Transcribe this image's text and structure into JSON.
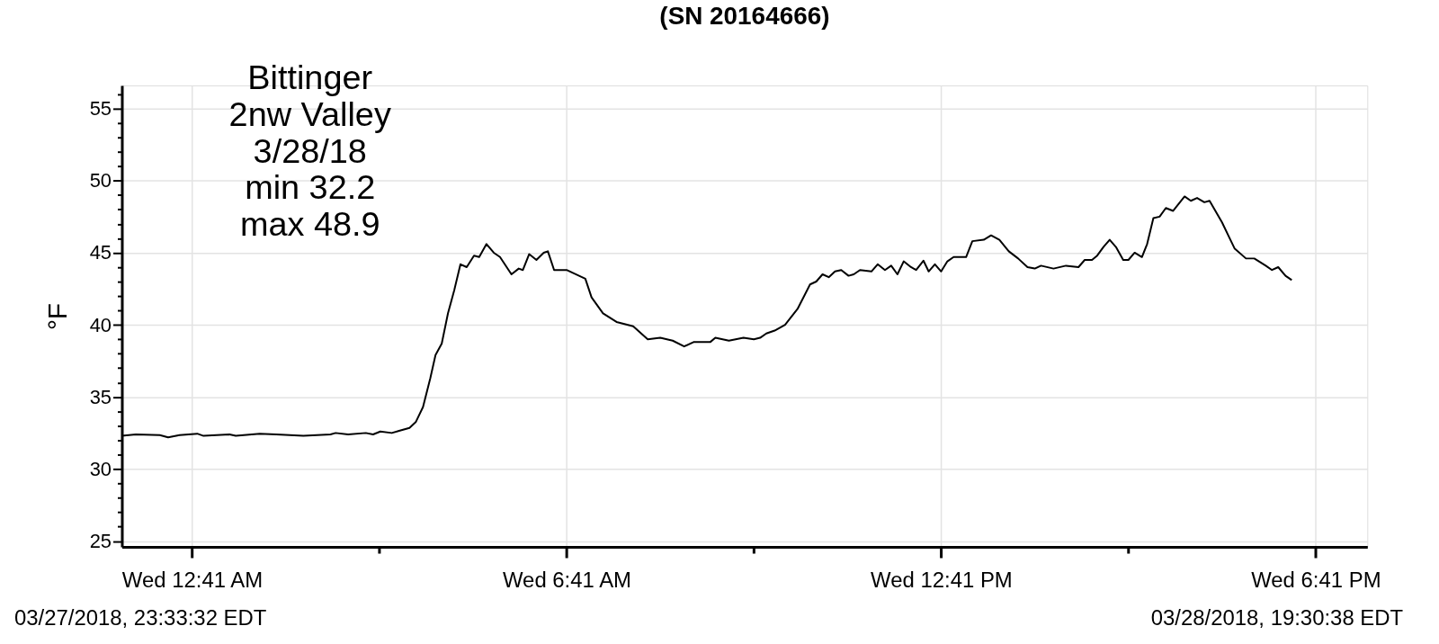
{
  "chart_data": {
    "type": "line",
    "title": "(SN 20164666)",
    "ylabel": "°F",
    "annotations": [
      "Bittinger\n2nw Valley\n3/28/18\nmin 32.2\nmax 48.9",
      "03/27/2018, 23:33:32 EDT",
      "03/28/2018, 19:30:38 EDT"
    ],
    "xlim": [
      "2018-03-27T23:33:32",
      "2018-03-28T19:30:38"
    ],
    "ylim": [
      24.6,
      56.6
    ],
    "xticks": [
      {
        "value": "2018-03-28T00:41",
        "label": "Wed 12:41 AM"
      },
      {
        "value": "2018-03-28T03:41",
        "label": null
      },
      {
        "value": "2018-03-28T06:41",
        "label": "Wed 6:41 AM"
      },
      {
        "value": "2018-03-28T09:41",
        "label": null
      },
      {
        "value": "2018-03-28T12:41",
        "label": "Wed 12:41 PM"
      },
      {
        "value": "2018-03-28T15:41",
        "label": null
      },
      {
        "value": "2018-03-28T18:41",
        "label": "Wed 6:41 PM"
      }
    ],
    "yticks": [
      25,
      {
        "value": 26,
        "label": null
      },
      {
        "value": 27,
        "label": null
      },
      {
        "value": 28,
        "label": null
      },
      {
        "value": 29,
        "label": null
      },
      30,
      {
        "value": 31,
        "label": null
      },
      {
        "value": 32,
        "label": null
      },
      {
        "value": 33,
        "label": null
      },
      {
        "value": 34,
        "label": null
      },
      35,
      {
        "value": 36,
        "label": null
      },
      {
        "value": 37,
        "label": null
      },
      {
        "value": 38,
        "label": null
      },
      {
        "value": 39,
        "label": null
      },
      40,
      {
        "value": 41,
        "label": null
      },
      {
        "value": 42,
        "label": null
      },
      {
        "value": 43,
        "label": null
      },
      {
        "value": 44,
        "label": null
      },
      45,
      {
        "value": 46,
        "label": null
      },
      {
        "value": 47,
        "label": null
      },
      {
        "value": 48,
        "label": null
      },
      {
        "value": 49,
        "label": null
      },
      50,
      {
        "value": 51,
        "label": null
      },
      {
        "value": 52,
        "label": null
      },
      {
        "value": 53,
        "label": null
      },
      {
        "value": 54,
        "label": null
      },
      55,
      {
        "value": 56,
        "label": null
      }
    ],
    "grid": true,
    "marker": "none",
    "line_style": "solid",
    "series": [
      {
        "color": "#000000",
        "x": [
          "2018-03-27T23:33:32",
          "2018-03-27T23:47",
          "2018-03-28T00:10",
          "2018-03-28T00:18",
          "2018-03-28T00:29",
          "2018-03-28T00:46",
          "2018-03-28T00:52",
          "2018-03-28T01:17",
          "2018-03-28T01:23",
          "2018-03-28T01:46",
          "2018-03-28T02:02",
          "2018-03-28T02:28",
          "2018-03-28T02:54",
          "2018-03-28T02:59",
          "2018-03-28T03:11",
          "2018-03-28T03:28",
          "2018-03-28T03:35",
          "2018-03-28T03:42",
          "2018-03-28T03:53",
          "2018-03-28T04:00",
          "2018-03-28T04:10",
          "2018-03-28T04:16",
          "2018-03-28T04:23",
          "2018-03-28T04:30",
          "2018-03-28T04:35",
          "2018-03-28T04:41",
          "2018-03-28T04:47",
          "2018-03-28T04:53",
          "2018-03-28T04:59",
          "2018-03-28T05:05",
          "2018-03-28T05:12",
          "2018-03-28T05:17",
          "2018-03-28T05:24",
          "2018-03-28T05:31",
          "2018-03-28T05:37",
          "2018-03-28T05:48",
          "2018-03-28T05:55",
          "2018-03-28T05:59",
          "2018-03-28T06:05",
          "2018-03-28T06:12",
          "2018-03-28T06:19",
          "2018-03-28T06:23",
          "2018-03-28T06:29",
          "2018-03-28T06:41",
          "2018-03-28T06:47",
          "2018-03-28T06:59",
          "2018-03-28T07:05",
          "2018-03-28T07:16",
          "2018-03-28T07:29",
          "2018-03-28T07:45",
          "2018-03-28T07:59",
          "2018-03-28T08:11",
          "2018-03-28T08:23",
          "2018-03-28T08:34",
          "2018-03-28T08:43",
          "2018-03-28T08:59",
          "2018-03-28T09:04",
          "2018-03-28T09:17",
          "2018-03-28T09:31",
          "2018-03-28T09:41",
          "2018-03-28T09:47",
          "2018-03-28T09:53",
          "2018-03-28T10:01",
          "2018-03-28T10:11",
          "2018-03-28T10:23",
          "2018-03-28T10:35",
          "2018-03-28T10:41",
          "2018-03-28T10:47",
          "2018-03-28T10:53",
          "2018-03-28T10:59",
          "2018-03-28T11:05",
          "2018-03-28T11:12",
          "2018-03-28T11:17",
          "2018-03-28T11:23",
          "2018-03-28T11:34",
          "2018-03-28T11:40",
          "2018-03-28T11:47",
          "2018-03-28T11:53",
          "2018-03-28T11:59",
          "2018-03-28T12:05",
          "2018-03-28T12:12",
          "2018-03-28T12:17",
          "2018-03-28T12:24",
          "2018-03-28T12:29",
          "2018-03-28T12:35",
          "2018-03-28T12:41",
          "2018-03-28T12:47",
          "2018-03-28T12:53",
          "2018-03-28T13:05",
          "2018-03-28T13:11",
          "2018-03-28T13:22",
          "2018-03-28T13:29",
          "2018-03-28T13:37",
          "2018-03-28T13:46",
          "2018-03-28T13:55",
          "2018-03-28T14:04",
          "2018-03-28T14:11",
          "2018-03-28T14:17",
          "2018-03-28T14:29",
          "2018-03-28T14:41",
          "2018-03-28T14:53",
          "2018-03-28T14:59",
          "2018-03-28T15:06",
          "2018-03-28T15:11",
          "2018-03-28T15:17",
          "2018-03-28T15:23",
          "2018-03-28T15:29",
          "2018-03-28T15:36",
          "2018-03-28T15:41",
          "2018-03-28T15:47",
          "2018-03-28T15:54",
          "2018-03-28T15:59",
          "2018-03-28T16:05",
          "2018-03-28T16:11",
          "2018-03-28T16:17",
          "2018-03-28T16:24",
          "2018-03-28T16:35",
          "2018-03-28T16:41",
          "2018-03-28T16:47",
          "2018-03-28T16:54",
          "2018-03-28T16:59",
          "2018-03-28T17:11",
          "2018-03-28T17:23",
          "2018-03-28T17:34",
          "2018-03-28T17:42",
          "2018-03-28T17:53",
          "2018-03-28T17:59",
          "2018-03-28T18:05",
          "2018-03-28T18:12",
          "2018-03-28T18:18"
        ],
        "values": [
          32.3,
          32.4,
          32.35,
          32.2,
          32.35,
          32.45,
          32.3,
          32.4,
          32.3,
          32.45,
          32.4,
          32.3,
          32.4,
          32.5,
          32.4,
          32.5,
          32.4,
          32.6,
          32.5,
          32.65,
          32.85,
          33.25,
          34.3,
          36.3,
          37.9,
          38.7,
          40.8,
          42.4,
          44.2,
          44.0,
          44.8,
          44.7,
          45.6,
          45.0,
          44.7,
          43.5,
          43.9,
          43.8,
          44.9,
          44.5,
          45.0,
          45.1,
          43.8,
          43.8,
          43.6,
          43.2,
          41.9,
          40.8,
          40.2,
          39.9,
          39.0,
          39.1,
          38.9,
          38.5,
          38.8,
          38.8,
          39.1,
          38.9,
          39.1,
          39.0,
          39.1,
          39.4,
          39.6,
          40.0,
          41.1,
          42.8,
          43.0,
          43.5,
          43.3,
          43.7,
          43.8,
          43.4,
          43.5,
          43.8,
          43.7,
          44.2,
          43.8,
          44.1,
          43.5,
          44.4,
          44.0,
          43.8,
          44.45,
          43.7,
          44.2,
          43.7,
          44.4,
          44.7,
          44.7,
          45.8,
          45.9,
          46.2,
          45.9,
          45.1,
          44.6,
          44.0,
          43.9,
          44.1,
          43.9,
          44.1,
          44.0,
          44.5,
          44.5,
          44.8,
          45.4,
          45.9,
          45.4,
          44.5,
          44.5,
          45.0,
          44.7,
          45.6,
          47.4,
          47.5,
          48.1,
          47.9,
          48.9,
          48.6,
          48.8,
          48.5,
          48.6,
          47.1,
          45.3,
          44.6,
          44.6,
          44.1,
          43.8,
          44.0,
          43.4,
          43.1
        ]
      }
    ]
  }
}
